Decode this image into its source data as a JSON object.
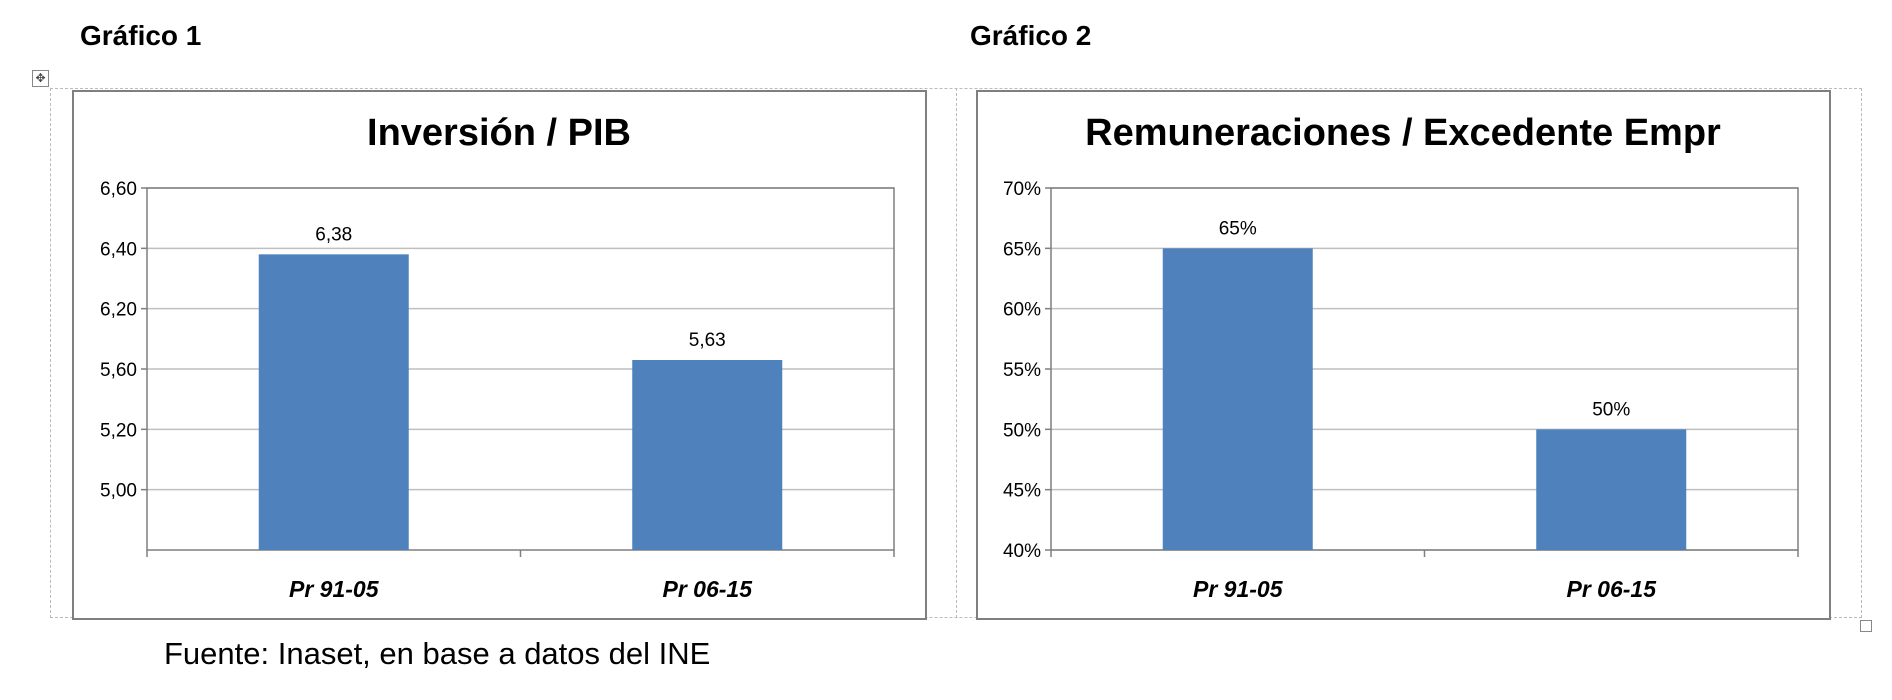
{
  "captions": {
    "chart1": "Gráfico 1",
    "chart2": "Gráfico 2"
  },
  "icons": {
    "move_handle": "move-cross-icon",
    "resize_handle": "resize-square-icon"
  },
  "colors": {
    "bar": "#4f81bd",
    "grid": "#bfbfbf",
    "frame": "#7f7f7f"
  },
  "chart_data": [
    {
      "type": "bar",
      "title": "Inversión / PIB",
      "categories": [
        "Pr 91-05",
        "Pr 06-15"
      ],
      "values": [
        6.38,
        5.63
      ],
      "value_labels": [
        "6,38",
        "5,63"
      ],
      "yticks": [
        "6,60",
        "6,40",
        "6,20",
        "5,60",
        "5,20",
        "5,00"
      ],
      "xlabel": "",
      "ylabel": "",
      "grid": true
    },
    {
      "type": "bar",
      "title": "Remuneraciones / Excedente Empr",
      "categories": [
        "Pr 91-05",
        "Pr 06-15"
      ],
      "values": [
        0.65,
        0.5
      ],
      "value_labels": [
        "65%",
        "50%"
      ],
      "yticks": [
        "70%",
        "65%",
        "60%",
        "55%",
        "50%",
        "45%",
        "40%"
      ],
      "ylim": [
        0.4,
        0.7
      ],
      "xlabel": "",
      "ylabel": "",
      "grid": true
    }
  ],
  "footer": "Fuente: Inaset, en base a datos del INE"
}
